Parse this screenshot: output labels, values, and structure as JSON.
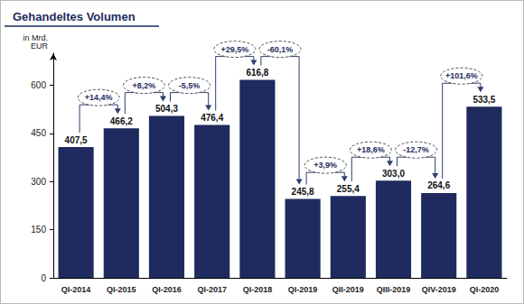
{
  "chart_data": {
    "type": "bar",
    "title": "Gehandeltes Volumen",
    "ylabel": "in Mrd. EUR",
    "categories": [
      "QI-2014",
      "QI-2015",
      "QI-2016",
      "QI-2017",
      "QI-2018",
      "QI-2019",
      "QII-2019",
      "QIII-2019",
      "QIV-2019",
      "QI-2020"
    ],
    "values": [
      407.5,
      466.2,
      504.3,
      476.4,
      616.8,
      245.8,
      255.4,
      303.0,
      264.6,
      533.5
    ],
    "value_labels": [
      "407,5",
      "466,2",
      "504,3",
      "476,4",
      "616,8",
      "245,8",
      "255,4",
      "303,0",
      "264,6",
      "533,5"
    ],
    "annotations": [
      "+14,4%",
      "+8,2%",
      "-5,5%",
      "+29,5%",
      "-60,1%",
      "+3,9%",
      "+18,6%",
      "-12,7%",
      "+101,6%"
    ],
    "color": "#1f2b5e",
    "ylim": [
      0,
      700
    ],
    "yticks": [
      0,
      150,
      300,
      450,
      600
    ],
    "grid": false,
    "data_labels": true
  }
}
